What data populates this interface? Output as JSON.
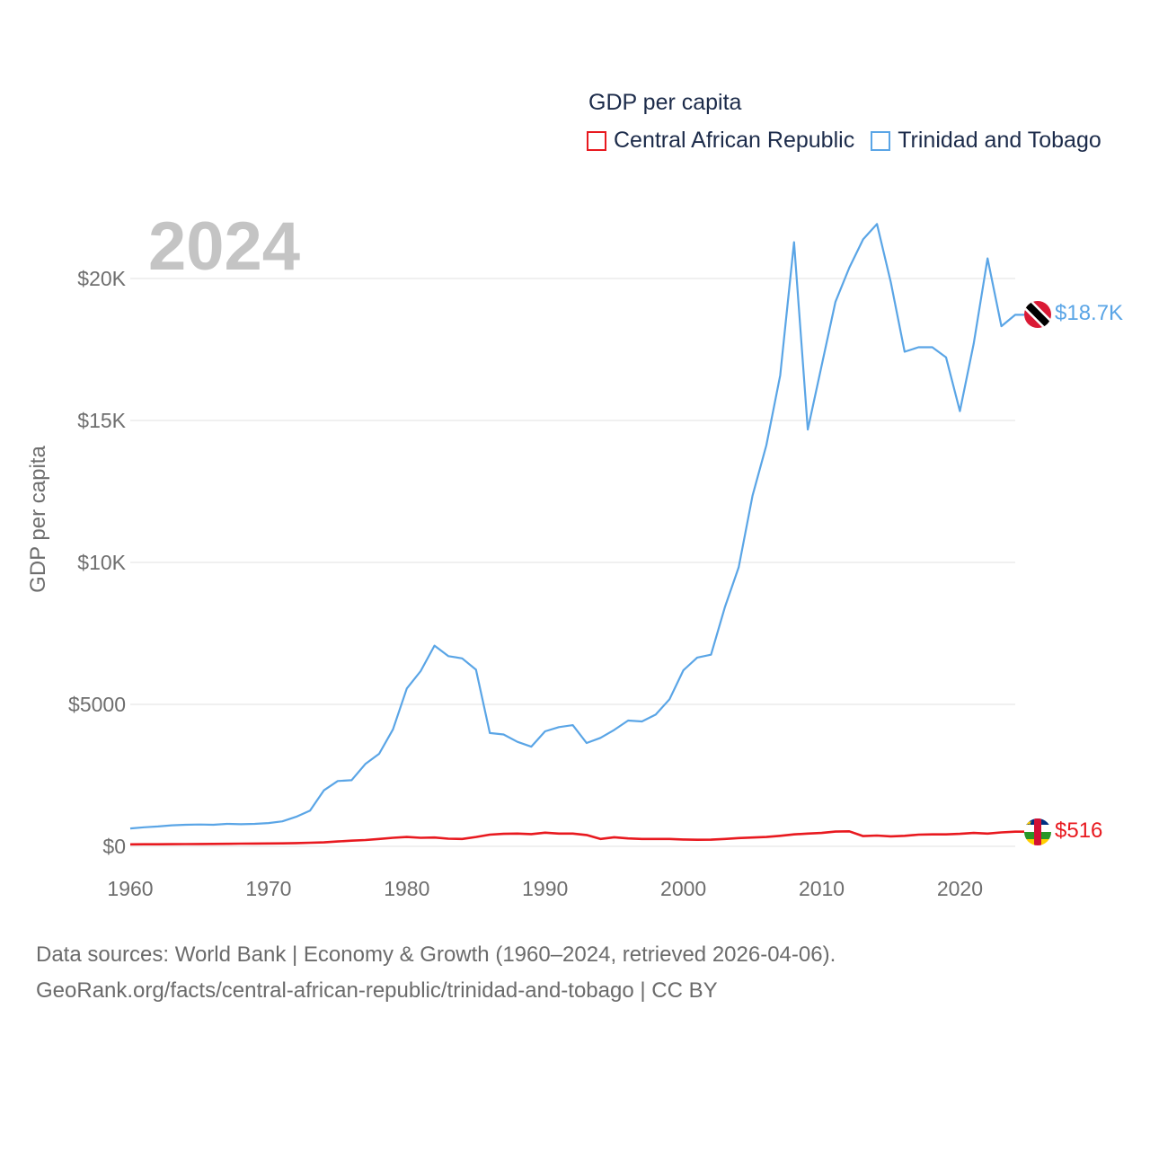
{
  "chart_data": {
    "type": "line",
    "title": "GDP per capita",
    "ylabel": "GDP per capita",
    "xlabel": "",
    "year_label": "2024",
    "ylim": [
      0,
      22500
    ],
    "xlim": [
      1960,
      2024
    ],
    "grid": true,
    "legend_position": "top-right",
    "y_ticks": [
      {
        "value": 0,
        "label": "$0"
      },
      {
        "value": 5000,
        "label": "$5000"
      },
      {
        "value": 10000,
        "label": "$10K"
      },
      {
        "value": 15000,
        "label": "$15K"
      },
      {
        "value": 20000,
        "label": "$20K"
      }
    ],
    "x_ticks": [
      {
        "value": 1960,
        "label": "1960"
      },
      {
        "value": 1970,
        "label": "1970"
      },
      {
        "value": 1980,
        "label": "1980"
      },
      {
        "value": 1990,
        "label": "1990"
      },
      {
        "value": 2000,
        "label": "2000"
      },
      {
        "value": 2010,
        "label": "2010"
      },
      {
        "value": 2020,
        "label": "2020"
      }
    ],
    "x": [
      1960,
      1961,
      1962,
      1963,
      1964,
      1965,
      1966,
      1967,
      1968,
      1969,
      1970,
      1971,
      1972,
      1973,
      1974,
      1975,
      1976,
      1977,
      1978,
      1979,
      1980,
      1981,
      1982,
      1983,
      1984,
      1985,
      1986,
      1987,
      1988,
      1989,
      1990,
      1991,
      1992,
      1993,
      1994,
      1995,
      1996,
      1997,
      1998,
      1999,
      2000,
      2001,
      2002,
      2003,
      2004,
      2005,
      2006,
      2007,
      2008,
      2009,
      2010,
      2011,
      2012,
      2013,
      2014,
      2015,
      2016,
      2017,
      2018,
      2019,
      2020,
      2021,
      2022,
      2023,
      2024
    ],
    "series": [
      {
        "name": "Central African Republic",
        "color": "#e8191f",
        "end_label": "$516",
        "flag": "central-african-republic",
        "values": [
          70,
          72,
          74,
          76,
          80,
          82,
          85,
          90,
          95,
          98,
          100,
          105,
          115,
          125,
          140,
          170,
          200,
          220,
          260,
          300,
          330,
          300,
          310,
          270,
          260,
          330,
          410,
          440,
          450,
          430,
          480,
          450,
          450,
          400,
          260,
          320,
          280,
          260,
          260,
          260,
          240,
          230,
          235,
          260,
          290,
          310,
          330,
          370,
          420,
          450,
          470,
          520,
          530,
          360,
          380,
          350,
          370,
          410,
          420,
          420,
          440,
          470,
          450,
          490,
          516
        ]
      },
      {
        "name": "Trinidad and Tobago",
        "color": "#5aa5e6",
        "end_label": "$18.7K",
        "flag": "trinidad-and-tobago",
        "values": [
          630,
          670,
          700,
          740,
          760,
          770,
          760,
          790,
          780,
          790,
          820,
          880,
          1040,
          1260,
          1970,
          2300,
          2330,
          2900,
          3260,
          4120,
          5560,
          6170,
          7070,
          6700,
          6620,
          6220,
          3990,
          3940,
          3680,
          3510,
          4050,
          4200,
          4270,
          3640,
          3820,
          4100,
          4430,
          4400,
          4640,
          5180,
          6200,
          6650,
          6750,
          8420,
          9830,
          12350,
          14130,
          16590,
          21280,
          14680,
          16930,
          19180,
          20380,
          21380,
          21920,
          19870,
          17420,
          17580,
          17580,
          17220,
          15330,
          17710,
          20710,
          18320,
          18720
        ]
      }
    ]
  },
  "legend": {
    "title": "GDP per capita",
    "items": [
      {
        "label": "Central African Republic",
        "color": "#e8191f"
      },
      {
        "label": "Trinidad and Tobago",
        "color": "#5aa5e6"
      }
    ]
  },
  "footer": {
    "line1": "Data sources: World Bank | Economy & Growth (1960–2024, retrieved 2026-04-06).",
    "line2": "GeoRank.org/facts/central-african-republic/trinidad-and-tobago | CC BY"
  }
}
